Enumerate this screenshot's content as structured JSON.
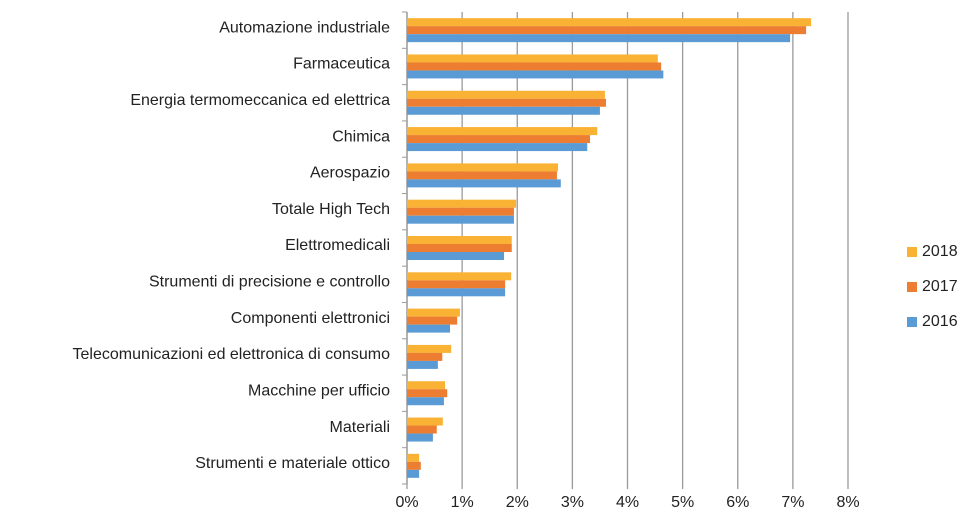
{
  "chart_data": {
    "type": "bar",
    "orientation": "horizontal",
    "categories": [
      "Automazione industriale",
      "Farmaceutica",
      "Energia termomeccanica ed elettrica",
      "Chimica",
      "Aerospazio",
      "Totale High Tech",
      "Elettromedicali",
      "Strumenti di precisione e controllo",
      "Componenti elettronici",
      "Telecomunicazioni ed elettronica di consumo",
      "Macchine per ufficio",
      "Materiali",
      "Strumenti e materiale ottico"
    ],
    "series": [
      {
        "name": "2018",
        "color": "#f9b233",
        "values": [
          7.33,
          4.55,
          3.59,
          3.45,
          2.74,
          1.98,
          1.9,
          1.89,
          0.96,
          0.8,
          0.69,
          0.65,
          0.22
        ]
      },
      {
        "name": "2017",
        "color": "#ed7d31",
        "values": [
          7.24,
          4.61,
          3.61,
          3.32,
          2.72,
          1.94,
          1.9,
          1.78,
          0.91,
          0.64,
          0.73,
          0.54,
          0.25
        ]
      },
      {
        "name": "2016",
        "color": "#5b9bd5",
        "values": [
          6.95,
          4.65,
          3.5,
          3.27,
          2.79,
          1.94,
          1.76,
          1.78,
          0.78,
          0.56,
          0.67,
          0.47,
          0.22
        ]
      }
    ],
    "xlim": [
      0,
      8
    ],
    "xticks": [
      {
        "value": 0,
        "label": "0%"
      },
      {
        "value": 1,
        "label": "1%"
      },
      {
        "value": 2,
        "label": "2%"
      },
      {
        "value": 3,
        "label": "3%"
      },
      {
        "value": 4,
        "label": "4%"
      },
      {
        "value": 5,
        "label": "5%"
      },
      {
        "value": 6,
        "label": "6%"
      },
      {
        "value": 7,
        "label": "7%"
      },
      {
        "value": 8,
        "label": "8%"
      }
    ],
    "grid": true,
    "legend": "right"
  }
}
